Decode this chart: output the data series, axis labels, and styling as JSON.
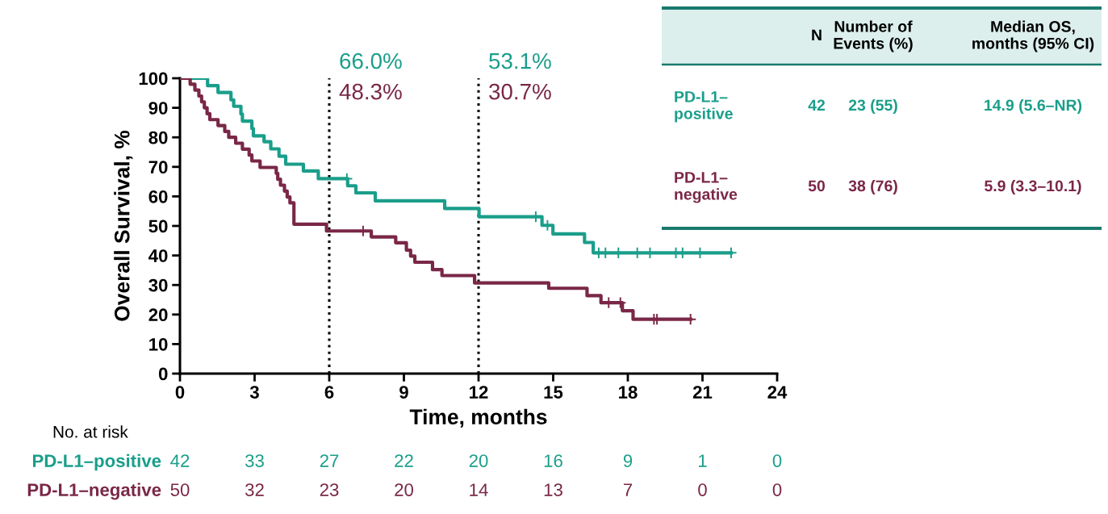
{
  "chart_data": {
    "type": "step",
    "xlabel": "Time, months",
    "ylabel": "Overall Survival, %",
    "xlim": [
      0,
      24
    ],
    "xticks": [
      0,
      3,
      6,
      9,
      12,
      15,
      18,
      21,
      24
    ],
    "ylim": [
      0,
      100
    ],
    "yticks": [
      0,
      10,
      20,
      30,
      40,
      50,
      60,
      70,
      80,
      90,
      100
    ],
    "grid": false,
    "legend": false,
    "line_style": "solid",
    "series": [
      {
        "name": "PD-L1–positive",
        "color": "#1a9e8a",
        "x": [
          0,
          1.11,
          1.53,
          2.05,
          2.16,
          2.45,
          2.51,
          2.89,
          2.95,
          3.38,
          3.65,
          3.98,
          4.25,
          4.96,
          5.56,
          6.74,
          7.07,
          7.85,
          10.64,
          12.02,
          14.55,
          14.99,
          16.26,
          16.61,
          22.15
        ],
        "values": [
          100,
          97.5,
          95.2,
          92.7,
          90.5,
          87.9,
          85.5,
          83.0,
          80.5,
          78.5,
          76.1,
          73.6,
          70.9,
          68.6,
          66.0,
          63.6,
          61.2,
          58.5,
          55.9,
          53.1,
          50.2,
          47.3,
          44.4,
          40.9,
          40.9
        ]
      },
      {
        "name": "PD-L1–negative",
        "color": "#7a2747",
        "x": [
          0,
          0.41,
          0.6,
          0.76,
          0.87,
          0.98,
          1.09,
          1.2,
          1.53,
          1.8,
          1.96,
          2.24,
          2.51,
          2.78,
          2.89,
          3.22,
          3.87,
          3.93,
          4.04,
          4.2,
          4.31,
          4.42,
          4.58,
          5.89,
          7.69,
          8.67,
          9.1,
          9.27,
          9.44,
          10.15,
          10.53,
          11.84,
          14.82,
          16.36,
          16.92,
          17.78,
          18.21,
          20.52
        ],
        "values": [
          100,
          98,
          96,
          94,
          92,
          90,
          88,
          86,
          84,
          82,
          80,
          78,
          76,
          74,
          72,
          69.8,
          67.8,
          65.8,
          63.8,
          61.8,
          59.8,
          57.8,
          50.6,
          48.3,
          46.3,
          44.3,
          41.8,
          39.8,
          37.7,
          35.2,
          33.2,
          30.7,
          28.9,
          26.4,
          24.0,
          21.3,
          18.4,
          18.4
        ]
      },
      {
        "type": "scatter",
        "marker": "cross",
        "color": "#1a9e8a",
        "x": [
          6.71,
          14.3,
          14.77,
          16.83,
          17.1,
          17.62,
          18.38,
          18.89,
          19.93,
          20.2,
          20.9,
          22.15
        ],
        "values": [
          66.0,
          53.1,
          50.2,
          40.9,
          40.9,
          40.9,
          40.9,
          40.9,
          40.9,
          40.9,
          40.9,
          40.9
        ]
      },
      {
        "type": "scatter",
        "marker": "cross",
        "color": "#7a2747",
        "x": [
          7.36,
          17.23,
          17.7,
          19.05,
          19.17,
          20.52
        ],
        "values": [
          48.3,
          24.0,
          24.0,
          18.4,
          18.4,
          18.4
        ]
      }
    ],
    "ref_lines": [
      {
        "axis": "x",
        "value": 6,
        "line_style": "dotted",
        "color": "#000000"
      },
      {
        "axis": "x",
        "value": 12,
        "line_style": "dotted",
        "color": "#000000"
      }
    ],
    "annotations": [
      "66.0%",
      "48.3%",
      "53.1%",
      "30.7%",
      "N",
      "Number of\nEvents (%)",
      "Median OS,\nmonths (95% CI)",
      "PD-L1–\npositive",
      "42",
      "23 (55)",
      "14.9 (5.6–NR)",
      "PD-L1–\nnegative",
      "50",
      "38 (76)",
      "5.9 (3.3–10.1)",
      "No. at risk",
      "42",
      "33",
      "27",
      "22",
      "20",
      "16",
      "9",
      "1",
      "0",
      "50",
      "32",
      "23",
      "20",
      "14",
      "13",
      "7",
      "0",
      "0"
    ]
  }
}
